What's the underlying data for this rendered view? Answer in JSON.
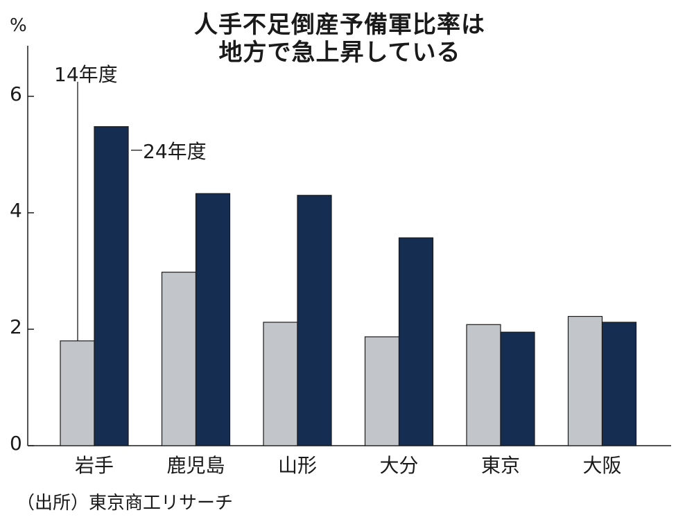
{
  "title": [
    "人手不足倒産予備軍比率は",
    "地方で急上昇している"
  ],
  "unit": "%",
  "source": "（出所）東京商工リサーチ",
  "legend_labels": {
    "series_0": "14年度",
    "series_1": "24年度"
  },
  "colors": {
    "series_0": "#c2c6cb",
    "series_1": "#162d52",
    "bar_outline": "#1a1a1a",
    "axis": "#1a1a1a",
    "text": "#1a1a1a"
  },
  "chart_data": {
    "type": "bar",
    "title": "人手不足倒産予備軍比率は地方で急上昇している",
    "ylabel": "%",
    "xlabel": "",
    "ylim": [
      0,
      6.8
    ],
    "yticks": [
      0,
      2,
      4,
      6
    ],
    "grid": false,
    "legend": "direct-labels",
    "categories": [
      "岩手",
      "鹿児島",
      "山形",
      "大分",
      "東京",
      "大阪"
    ],
    "series": [
      {
        "name": "14年度",
        "color": "#c2c6cb",
        "values": [
          1.8,
          2.98,
          2.12,
          1.87,
          2.08,
          2.22
        ]
      },
      {
        "name": "24年度",
        "color": "#162d52",
        "values": [
          5.48,
          4.33,
          4.3,
          3.57,
          1.95,
          2.12
        ]
      }
    ]
  }
}
